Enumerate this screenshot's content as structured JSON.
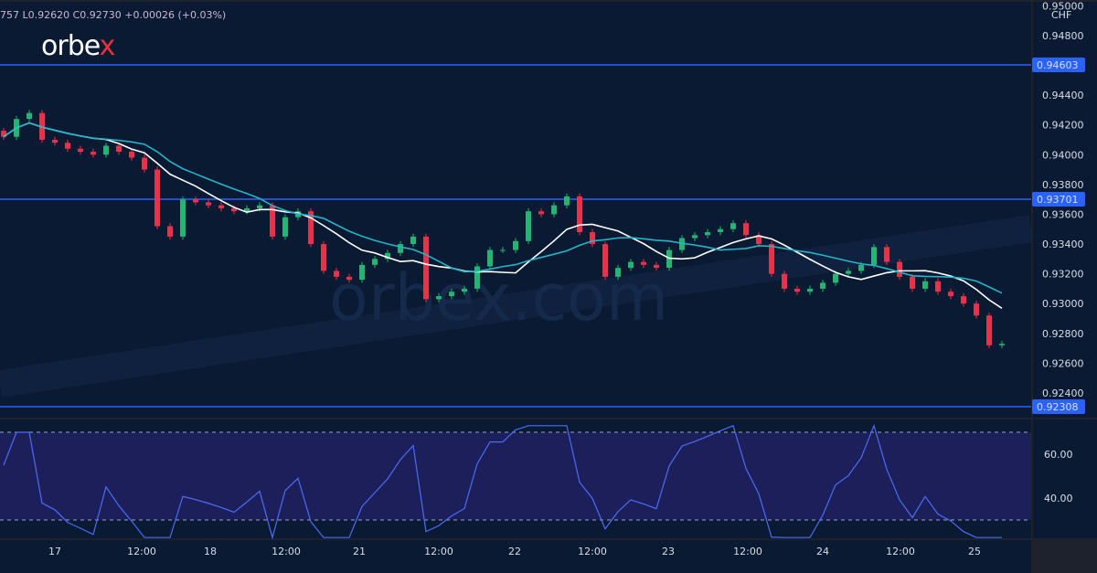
{
  "header": {
    "ohlc_text": "757  L0.92620  C0.92730  +0.00026 (+0.03%)",
    "logo": "orbex",
    "watermark": "orbex.com"
  },
  "colors": {
    "background": "#0b1a33",
    "bull": "#22b573",
    "bear": "#e8314a",
    "fast_ma": "#ffffff",
    "slow_ma": "#22b5c9",
    "level_line": "#2962ff",
    "rsi_line": "#4a6cf7",
    "rsi_band": "#1c1f5a"
  },
  "chart_data": [
    {
      "type": "candlestick",
      "symbol_currency": "CHF",
      "ylim": [
        0.923,
        0.95
      ],
      "y_ticks": [
        "0.95000",
        "0.94800",
        "0.94400",
        "0.94200",
        "0.94000",
        "0.93800",
        "0.93600",
        "0.93400",
        "0.93200",
        "0.93000",
        "0.92800",
        "0.92600",
        "0.92400"
      ],
      "x_ticks": [
        "17",
        "12:00",
        "18",
        "12:00",
        "21",
        "12:00",
        "22",
        "12:00",
        "23",
        "12:00",
        "24",
        "12:00",
        "25"
      ],
      "levels": [
        {
          "value": 0.94603,
          "label": "0.94603"
        },
        {
          "value": 0.93701,
          "label": "0.93701"
        },
        {
          "value": 0.92308,
          "label": "0.92308"
        }
      ],
      "closes": [
        0.9412,
        0.9424,
        0.9428,
        0.941,
        0.9408,
        0.9404,
        0.9402,
        0.94,
        0.9406,
        0.9402,
        0.9398,
        0.939,
        0.9352,
        0.9345,
        0.937,
        0.9368,
        0.9366,
        0.9364,
        0.9362,
        0.9364,
        0.9366,
        0.9345,
        0.9358,
        0.9362,
        0.934,
        0.9322,
        0.9318,
        0.9316,
        0.9326,
        0.933,
        0.9334,
        0.934,
        0.9345,
        0.9303,
        0.9305,
        0.9308,
        0.931,
        0.9325,
        0.9336,
        0.9336,
        0.9342,
        0.9362,
        0.936,
        0.9366,
        0.9372,
        0.9348,
        0.934,
        0.9318,
        0.9324,
        0.9328,
        0.9326,
        0.9324,
        0.9336,
        0.9344,
        0.9346,
        0.9348,
        0.935,
        0.9354,
        0.9346,
        0.934,
        0.932,
        0.931,
        0.9308,
        0.931,
        0.9314,
        0.932,
        0.9322,
        0.9326,
        0.9338,
        0.9328,
        0.9318,
        0.931,
        0.9315,
        0.9308,
        0.9305,
        0.93,
        0.9292,
        0.9272,
        0.9273
      ],
      "last_low": 0.9262,
      "last_close": 0.9273
    },
    {
      "type": "line",
      "indicator": "RSI",
      "ylim": [
        20,
        75
      ],
      "y_ticks": [
        "60.00",
        "40.00"
      ],
      "bands": [
        30,
        70
      ]
    }
  ]
}
